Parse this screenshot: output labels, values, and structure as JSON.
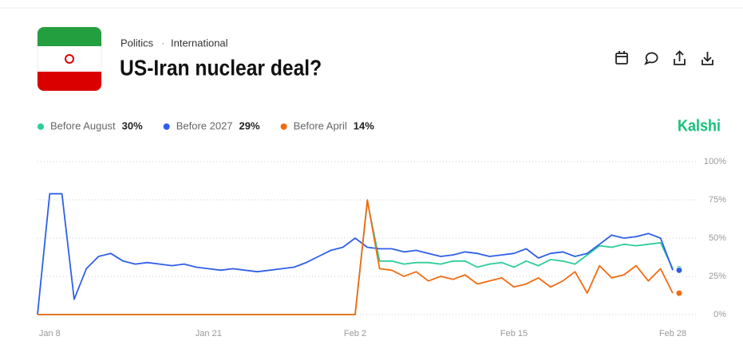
{
  "header": {
    "breadcrumbs": [
      "Politics",
      "International"
    ],
    "separator": "·",
    "title": "US-Iran nuclear deal?",
    "brand": "Kalshi"
  },
  "chart_data": {
    "type": "line",
    "x": [
      "Jan 7",
      "Jan 8",
      "Jan 9",
      "Jan 10",
      "Jan 11",
      "Jan 12",
      "Jan 13",
      "Jan 14",
      "Jan 15",
      "Jan 16",
      "Jan 17",
      "Jan 18",
      "Jan 19",
      "Jan 20",
      "Jan 21",
      "Jan 22",
      "Jan 23",
      "Jan 24",
      "Jan 25",
      "Jan 26",
      "Jan 27",
      "Jan 28",
      "Jan 29",
      "Jan 30",
      "Jan 31",
      "Feb 1",
      "Feb 2",
      "Feb 3",
      "Feb 4",
      "Feb 5",
      "Feb 6",
      "Feb 7",
      "Feb 8",
      "Feb 9",
      "Feb 10",
      "Feb 11",
      "Feb 12",
      "Feb 13",
      "Feb 14",
      "Feb 15",
      "Feb 16",
      "Feb 17",
      "Feb 18",
      "Feb 19",
      "Feb 20",
      "Feb 21",
      "Feb 22",
      "Feb 23",
      "Feb 24",
      "Feb 25",
      "Feb 26",
      "Feb 27",
      "Feb 28"
    ],
    "xticks": [
      "Jan 8",
      "Jan 21",
      "Feb 2",
      "Feb 15",
      "Feb 28"
    ],
    "ylim": [
      0,
      100
    ],
    "yticks": [
      {
        "value": 0,
        "label": "0%"
      },
      {
        "value": 25,
        "label": "25%"
      },
      {
        "value": 50,
        "label": "50%"
      },
      {
        "value": 75,
        "label": "75%"
      },
      {
        "value": 100,
        "label": "100%"
      }
    ],
    "grid": true,
    "series": [
      {
        "name": "Before August",
        "color": "#2ecc9a",
        "last_label": "30%",
        "values": [
          0,
          0,
          0,
          0,
          0,
          0,
          0,
          0,
          0,
          0,
          0,
          0,
          0,
          0,
          0,
          0,
          0,
          0,
          0,
          0,
          0,
          0,
          0,
          0,
          0,
          0,
          0,
          74,
          35,
          35,
          33,
          34,
          34,
          33,
          35,
          35,
          31,
          33,
          34,
          31,
          35,
          32,
          36,
          35,
          33,
          39,
          45,
          44,
          46,
          45,
          46,
          47,
          30
        ]
      },
      {
        "name": "Before 2027",
        "color": "#2f5fe8",
        "last_label": "29%",
        "values": [
          0,
          79,
          79,
          10,
          30,
          38,
          40,
          35,
          33,
          34,
          33,
          32,
          33,
          31,
          30,
          29,
          30,
          29,
          28,
          29,
          30,
          31,
          34,
          38,
          42,
          44,
          50,
          44,
          43,
          43,
          41,
          42,
          40,
          38,
          39,
          41,
          40,
          38,
          39,
          40,
          43,
          37,
          40,
          41,
          38,
          40,
          46,
          52,
          50,
          51,
          53,
          50,
          29
        ]
      },
      {
        "name": "Before April",
        "color": "#f26b12",
        "last_label": "14%",
        "values": [
          0,
          0,
          0,
          0,
          0,
          0,
          0,
          0,
          0,
          0,
          0,
          0,
          0,
          0,
          0,
          0,
          0,
          0,
          0,
          0,
          0,
          0,
          0,
          0,
          0,
          0,
          0,
          75,
          30,
          29,
          25,
          28,
          22,
          25,
          23,
          26,
          20,
          22,
          24,
          18,
          20,
          24,
          18,
          22,
          28,
          14,
          32,
          24,
          26,
          32,
          22,
          30,
          14
        ]
      }
    ]
  }
}
